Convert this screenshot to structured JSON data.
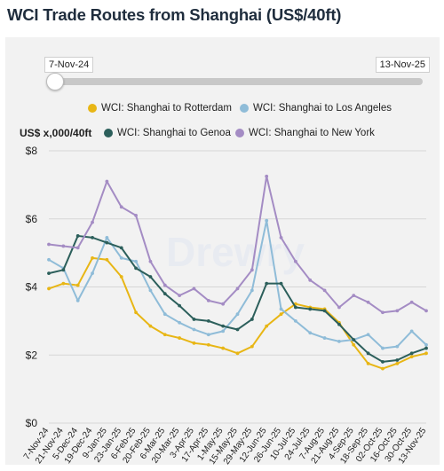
{
  "title": "WCI Trade Routes from Shanghai (US$/40ft)",
  "range": {
    "start": "7-Nov-24",
    "end": "13-Nov-25"
  },
  "colors": {
    "rotterdam": "#e8b615",
    "los_angeles": "#8fbcd8",
    "genoa": "#2c5f5b",
    "new_york": "#a48cc4"
  },
  "chart_data": {
    "type": "line",
    "ylabel": "US$ x,000/40ft",
    "ylim": [
      0,
      8
    ],
    "yticks": [
      "$0",
      "$2",
      "$4",
      "$6",
      "$8"
    ],
    "grid": true,
    "legend_position": "top",
    "x": [
      "7-Nov-24",
      "21-Nov-24",
      "5-Dec-24",
      "19-Dec-24",
      "9-Jan-25",
      "23-Jan-25",
      "6-Feb-25",
      "20-Feb-25",
      "6-Mar-25",
      "20-Mar-25",
      "3-Apr-25",
      "17-Apr-25",
      "1-May-25",
      "15-May-25",
      "29-May-25",
      "12-Jun-25",
      "26-Jun-25",
      "10-Jul-25",
      "24-Jul-25",
      "7-Aug-25",
      "21-Aug-25",
      "4-Sep-25",
      "18-Sep-25",
      "02-Oct-25",
      "16-Oct-25",
      "30-Oct-25",
      "13-Nov-25"
    ],
    "series": [
      {
        "name": "WCI: Shanghai to Rotterdam",
        "color": "#e8b615",
        "values": [
          3.95,
          4.1,
          4.05,
          4.85,
          4.8,
          4.3,
          3.25,
          2.85,
          2.6,
          2.5,
          2.35,
          2.3,
          2.2,
          2.05,
          2.25,
          2.85,
          3.2,
          3.5,
          3.4,
          3.35,
          2.95,
          2.3,
          1.75,
          1.6,
          1.75,
          1.95,
          2.05
        ]
      },
      {
        "name": "WCI: Shanghai to Los Angeles",
        "color": "#8fbcd8",
        "values": [
          4.8,
          4.55,
          3.6,
          4.4,
          5.45,
          4.85,
          4.75,
          3.9,
          3.2,
          2.95,
          2.75,
          2.6,
          2.7,
          3.2,
          3.9,
          5.95,
          3.35,
          3.0,
          2.65,
          2.5,
          2.4,
          2.45,
          2.6,
          2.2,
          2.25,
          2.7,
          2.3
        ]
      },
      {
        "name": "WCI: Shanghai to Genoa",
        "color": "#2c5f5b",
        "values": [
          4.4,
          4.5,
          5.5,
          5.45,
          5.3,
          5.15,
          4.55,
          4.3,
          3.8,
          3.45,
          3.05,
          3.0,
          2.85,
          2.75,
          3.05,
          4.1,
          4.1,
          3.4,
          3.35,
          3.3,
          2.9,
          2.45,
          2.05,
          1.8,
          1.85,
          2.05,
          2.2
        ]
      },
      {
        "name": "WCI: Shanghai to New York",
        "color": "#a48cc4",
        "values": [
          5.25,
          5.2,
          5.15,
          5.9,
          7.1,
          6.35,
          6.1,
          4.75,
          4.05,
          3.75,
          3.95,
          3.6,
          3.5,
          3.95,
          4.5,
          7.25,
          5.45,
          4.75,
          4.2,
          3.9,
          3.4,
          3.75,
          3.55,
          3.25,
          3.3,
          3.55,
          3.3
        ]
      }
    ]
  }
}
